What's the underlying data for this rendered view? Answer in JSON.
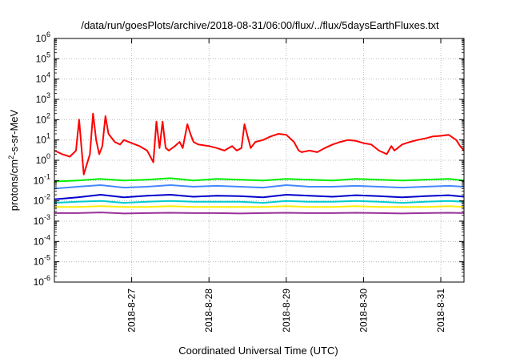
{
  "chart_data": {
    "type": "line",
    "title": "/data/run/goesPlots/archive/2018-08-31/06:00/flux/../flux/5daysEarthFluxes.txt",
    "xlabel": "Coordinated Universal Time (UTC)",
    "ylabel": "protons/cm2-s-sr-MeV",
    "ylabel_main": "protons/cm",
    "ylabel_sup": "2",
    "ylabel_rest": "-s-sr-MeV",
    "y_scale": "log",
    "ylim": [
      1e-06,
      1000000.0
    ],
    "xlim": [
      26.0,
      31.3
    ],
    "x_unit": "day of August 2018",
    "grid": true,
    "y_ticks": [
      {
        "base": "10",
        "exp": "-6",
        "value": -6
      },
      {
        "base": "10",
        "exp": "-5",
        "value": -5
      },
      {
        "base": "10",
        "exp": "-4",
        "value": -4
      },
      {
        "base": "10",
        "exp": "-3",
        "value": -3
      },
      {
        "base": "10",
        "exp": "-2",
        "value": -2
      },
      {
        "base": "10",
        "exp": "-1",
        "value": -1
      },
      {
        "base": "10",
        "exp": "0",
        "value": 0
      },
      {
        "base": "10",
        "exp": "1",
        "value": 1
      },
      {
        "base": "10",
        "exp": "2",
        "value": 2
      },
      {
        "base": "10",
        "exp": "3",
        "value": 3
      },
      {
        "base": "10",
        "exp": "4",
        "value": 4
      },
      {
        "base": "10",
        "exp": "5",
        "value": 5
      },
      {
        "base": "10",
        "exp": "6",
        "value": 6
      }
    ],
    "x_ticks": [
      {
        "label": "2018-8-27",
        "value": 27
      },
      {
        "label": "2018-8-28",
        "value": 28
      },
      {
        "label": "2018-8-29",
        "value": 29
      },
      {
        "label": "2018-8-30",
        "value": 30
      },
      {
        "label": "2018-8-31",
        "value": 31
      }
    ],
    "series": [
      {
        "color": "#ff0000",
        "x": [
          26.0,
          26.1,
          26.2,
          26.28,
          26.32,
          26.38,
          26.46,
          26.5,
          26.54,
          26.58,
          26.62,
          26.66,
          26.7,
          26.78,
          26.85,
          26.9,
          27.0,
          27.1,
          27.2,
          27.28,
          27.32,
          27.36,
          27.4,
          27.44,
          27.48,
          27.56,
          27.62,
          27.66,
          27.72,
          27.76,
          27.8,
          27.86,
          28.0,
          28.1,
          28.2,
          28.3,
          28.36,
          28.42,
          28.46,
          28.5,
          28.54,
          28.6,
          28.7,
          28.8,
          28.9,
          29.0,
          29.1,
          29.16,
          29.2,
          29.3,
          29.4,
          29.5,
          29.6,
          29.7,
          29.8,
          29.9,
          30.0,
          30.1,
          30.2,
          30.3,
          30.36,
          30.4,
          30.5,
          30.6,
          30.7,
          30.8,
          30.9,
          31.0,
          31.1,
          31.2,
          31.25,
          31.3
        ],
        "values": [
          3,
          2,
          1.5,
          3,
          100,
          0.2,
          2,
          200,
          10,
          2,
          5,
          150,
          20,
          8,
          6,
          10,
          7,
          5,
          3,
          0.8,
          80,
          4,
          80,
          4,
          3,
          5,
          8,
          4,
          60,
          20,
          8,
          6,
          5,
          4,
          3,
          5,
          3,
          4,
          60,
          15,
          4,
          8,
          10,
          15,
          20,
          18,
          8,
          3,
          2.5,
          3,
          2.5,
          4,
          6,
          8,
          10,
          9,
          7,
          6,
          3,
          2,
          5,
          3,
          6,
          8,
          10,
          12,
          15,
          16,
          18,
          10,
          5,
          3
        ]
      },
      {
        "color": "#00ee00",
        "x": [
          26.0,
          26.3,
          26.6,
          26.9,
          27.2,
          27.5,
          27.8,
          28.1,
          28.4,
          28.7,
          29.0,
          29.3,
          29.6,
          29.9,
          30.2,
          30.5,
          30.8,
          31.1,
          31.3
        ],
        "values": [
          0.09,
          0.1,
          0.12,
          0.1,
          0.11,
          0.13,
          0.1,
          0.12,
          0.11,
          0.1,
          0.12,
          0.11,
          0.1,
          0.12,
          0.11,
          0.1,
          0.11,
          0.12,
          0.1
        ]
      },
      {
        "color": "#4488ff",
        "x": [
          26.0,
          26.3,
          26.6,
          26.9,
          27.2,
          27.5,
          27.8,
          28.1,
          28.4,
          28.7,
          29.0,
          29.3,
          29.6,
          29.9,
          30.2,
          30.5,
          30.8,
          31.1,
          31.3
        ],
        "values": [
          0.04,
          0.05,
          0.06,
          0.045,
          0.05,
          0.06,
          0.05,
          0.055,
          0.05,
          0.045,
          0.06,
          0.05,
          0.05,
          0.055,
          0.05,
          0.045,
          0.05,
          0.055,
          0.05
        ]
      },
      {
        "color": "#0000cc",
        "x": [
          26.0,
          26.3,
          26.6,
          26.9,
          27.2,
          27.5,
          27.8,
          28.1,
          28.4,
          28.7,
          29.0,
          29.3,
          29.6,
          29.9,
          30.2,
          30.5,
          30.8,
          31.1,
          31.3
        ],
        "values": [
          0.012,
          0.015,
          0.02,
          0.015,
          0.018,
          0.02,
          0.016,
          0.018,
          0.017,
          0.015,
          0.02,
          0.018,
          0.016,
          0.019,
          0.017,
          0.015,
          0.017,
          0.019,
          0.016
        ]
      },
      {
        "color": "#00cccc",
        "x": [
          26.0,
          26.3,
          26.6,
          26.9,
          27.2,
          27.5,
          27.8,
          28.1,
          28.4,
          28.7,
          29.0,
          29.3,
          29.6,
          29.9,
          30.2,
          30.5,
          30.8,
          31.1,
          31.3
        ],
        "values": [
          0.008,
          0.009,
          0.01,
          0.008,
          0.009,
          0.01,
          0.009,
          0.009,
          0.009,
          0.008,
          0.01,
          0.009,
          0.009,
          0.01,
          0.009,
          0.008,
          0.009,
          0.01,
          0.009
        ]
      },
      {
        "color": "#ffee00",
        "x": [
          26.0,
          26.3,
          26.6,
          26.9,
          27.2,
          27.5,
          27.8,
          28.1,
          28.4,
          28.7,
          29.0,
          29.3,
          29.6,
          29.9,
          30.2,
          30.5,
          30.8,
          31.1,
          31.3
        ],
        "values": [
          0.005,
          0.005,
          0.0055,
          0.005,
          0.005,
          0.0055,
          0.005,
          0.005,
          0.005,
          0.005,
          0.0055,
          0.005,
          0.005,
          0.0055,
          0.005,
          0.005,
          0.005,
          0.0055,
          0.005
        ]
      },
      {
        "color": "#993399",
        "x": [
          26.0,
          26.3,
          26.6,
          26.9,
          27.2,
          27.5,
          27.8,
          28.1,
          28.4,
          28.7,
          29.0,
          29.3,
          29.6,
          29.9,
          30.2,
          30.5,
          30.8,
          31.1,
          31.3
        ],
        "values": [
          0.0025,
          0.0025,
          0.0027,
          0.0024,
          0.0025,
          0.0026,
          0.0025,
          0.0025,
          0.0024,
          0.0025,
          0.0026,
          0.0025,
          0.0025,
          0.0026,
          0.0025,
          0.0024,
          0.0025,
          0.0026,
          0.0025
        ]
      }
    ]
  }
}
